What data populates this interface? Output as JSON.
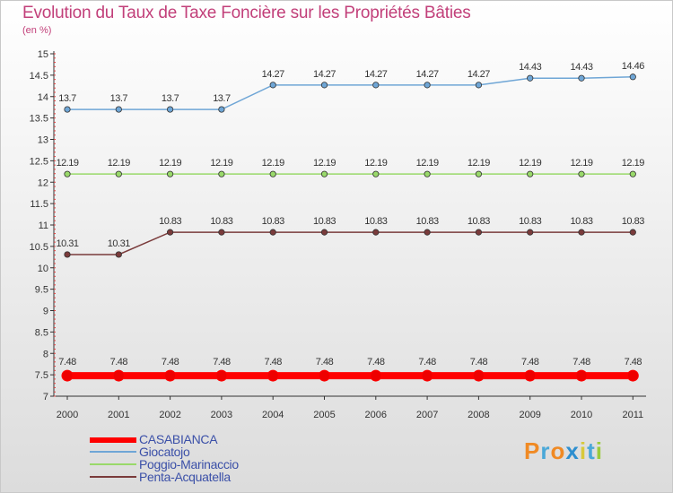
{
  "chart_data": {
    "type": "line",
    "title": "Evolution du Taux de Taxe Foncière sur les Propriétés Bâties",
    "ylabel": "(en %)",
    "xlabel": "",
    "categories": [
      "2000",
      "2001",
      "2002",
      "2003",
      "2004",
      "2005",
      "2006",
      "2007",
      "2008",
      "2009",
      "2010",
      "2011"
    ],
    "ylim": [
      7,
      15
    ],
    "yticks": [
      "7",
      "7.5",
      "8",
      "8.5",
      "9",
      "9.5",
      "10",
      "10.5",
      "11",
      "11.5",
      "12",
      "12.5",
      "13",
      "13.5",
      "14",
      "14.5",
      "15"
    ],
    "series": [
      {
        "name": "CASABIANCA",
        "color": "#ff0000",
        "values": [
          7.48,
          7.48,
          7.48,
          7.48,
          7.48,
          7.48,
          7.48,
          7.48,
          7.48,
          7.48,
          7.48,
          7.48
        ],
        "labels": [
          "7.48",
          "7.48",
          "7.48",
          "7.48",
          "7.48",
          "7.48",
          "7.48",
          "7.48",
          "7.48",
          "7.48",
          "7.48",
          "7.48"
        ]
      },
      {
        "name": "Giocatojo",
        "color": "#6fa6d6",
        "values": [
          13.7,
          13.7,
          13.7,
          13.7,
          14.27,
          14.27,
          14.27,
          14.27,
          14.27,
          14.43,
          14.43,
          14.46
        ],
        "labels": [
          "13.7",
          "13.7",
          "13.7",
          "13.7",
          "14.27",
          "14.27",
          "14.27",
          "14.27",
          "14.27",
          "14.43",
          "14.43",
          "14.46"
        ]
      },
      {
        "name": "Poggio-Marinaccio",
        "color": "#99d96a",
        "values": [
          12.19,
          12.19,
          12.19,
          12.19,
          12.19,
          12.19,
          12.19,
          12.19,
          12.19,
          12.19,
          12.19,
          12.19
        ],
        "labels": [
          "12.19",
          "12.19",
          "12.19",
          "12.19",
          "12.19",
          "12.19",
          "12.19",
          "12.19",
          "12.19",
          "12.19",
          "12.19",
          "12.19"
        ]
      },
      {
        "name": "Penta-Acquatella",
        "color": "#7a3b3b",
        "values": [
          10.31,
          10.31,
          10.83,
          10.83,
          10.83,
          10.83,
          10.83,
          10.83,
          10.83,
          10.83,
          10.83,
          10.83
        ],
        "labels": [
          "10.31",
          "10.31",
          "10.83",
          "10.83",
          "10.83",
          "10.83",
          "10.83",
          "10.83",
          "10.83",
          "10.83",
          "10.83",
          "10.83"
        ]
      }
    ],
    "legend_position": "bottom-left"
  },
  "logo": {
    "text": "Proxiti"
  }
}
